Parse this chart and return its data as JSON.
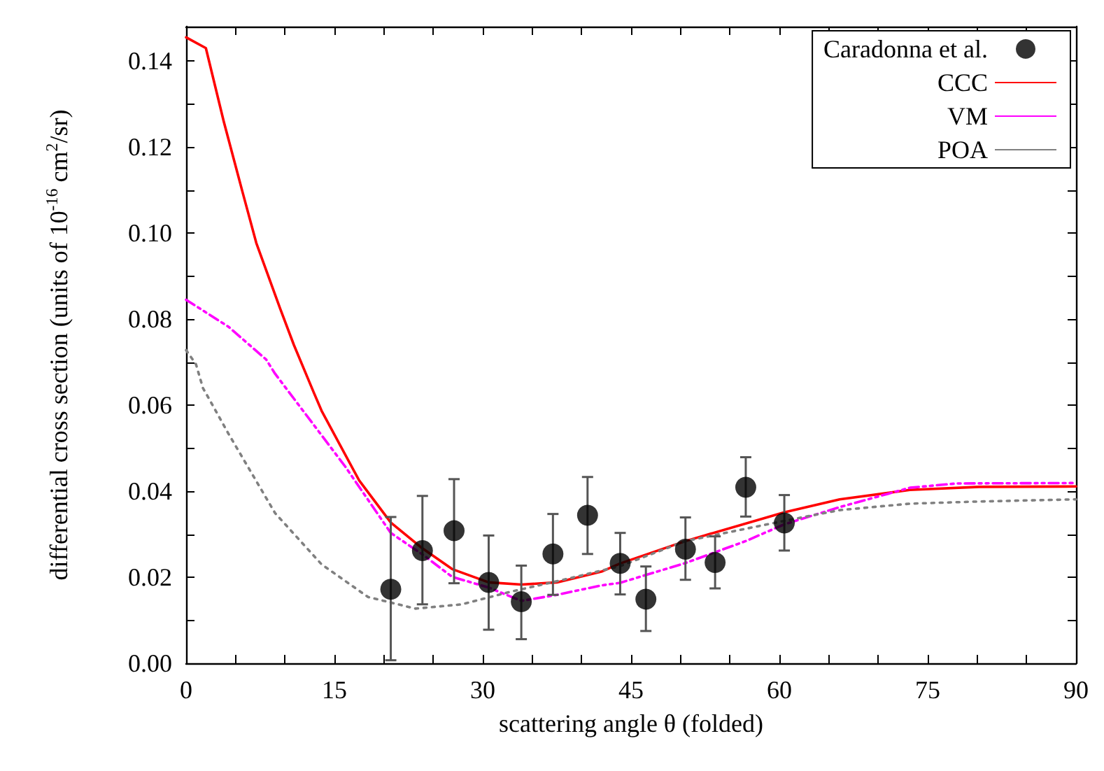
{
  "chart_data": {
    "type": "line",
    "xlabel": "scattering angle θ (folded)",
    "ylabel": "differential cross section (units of 10$^{-16}$ cm$^{2}$/sr)",
    "xlim": [
      0,
      90
    ],
    "xticks": [
      0,
      {
        "value": 5,
        "label": null
      },
      {
        "value": 10,
        "label": null
      },
      15,
      {
        "value": 20,
        "label": null
      },
      {
        "value": 25,
        "label": null
      },
      30,
      {
        "value": 35,
        "label": null
      },
      {
        "value": 40,
        "label": null
      },
      45,
      {
        "value": 50,
        "label": null
      },
      {
        "value": 55,
        "label": null
      },
      60,
      {
        "value": 65,
        "label": null
      },
      {
        "value": 70,
        "label": null
      },
      75,
      {
        "value": 80,
        "label": null
      },
      {
        "value": 85,
        "label": null
      },
      90
    ],
    "ylim": [
      0,
      0.148
    ],
    "yticks": [
      {
        "value": 0,
        "label": "0.00"
      },
      {
        "value": 0.01,
        "label": null
      },
      {
        "value": 0.02,
        "label": "0.02"
      },
      {
        "value": 0.03,
        "label": null
      },
      {
        "value": 0.04,
        "label": "0.04"
      },
      {
        "value": 0.05,
        "label": null
      },
      {
        "value": 0.06,
        "label": "0.06"
      },
      {
        "value": 0.07,
        "label": null
      },
      {
        "value": 0.08,
        "label": "0.08"
      },
      {
        "value": 0.09,
        "label": null
      },
      {
        "value": 0.1,
        "label": "0.10"
      },
      {
        "value": 0.11,
        "label": null
      },
      {
        "value": 0.12,
        "label": "0.12"
      },
      {
        "value": 0.13,
        "label": null
      },
      {
        "value": 0.14,
        "label": "0.14"
      }
    ],
    "grid": false,
    "legend": "top right",
    "series": [
      {
        "name": "Caradonna et al.",
        "type": "scatter",
        "color": "#000000",
        "marker": "circle",
        "x": [
          20.7,
          23.9,
          27.1,
          30.6,
          33.9,
          37.1,
          40.6,
          43.9,
          46.5,
          50.5,
          53.5,
          56.6,
          60.5
        ],
        "values": [
          0.0172,
          0.0262,
          0.0308,
          0.0188,
          0.0143,
          0.0254,
          0.0344,
          0.0232,
          0.0149,
          0.0265,
          0.0234,
          0.0409,
          0.0326
        ],
        "errors": [
          [
            0.0007,
            0.034
          ],
          [
            0.0137,
            0.0389
          ],
          [
            0.0186,
            0.0428
          ],
          [
            0.0078,
            0.0297
          ],
          [
            0.0056,
            0.0227
          ],
          [
            0.0159,
            0.0347
          ],
          [
            0.0254,
            0.0433
          ],
          [
            0.016,
            0.0303
          ],
          [
            0.0075,
            0.0225
          ],
          [
            0.0194,
            0.0339
          ],
          [
            0.0174,
            0.0295
          ],
          [
            0.0341,
            0.0479
          ],
          [
            0.0262,
            0.0391
          ]
        ]
      },
      {
        "name": "CCC",
        "color": "#ff0000",
        "marker": "none",
        "line_style": "solid",
        "x": [
          0,
          2,
          3.8,
          5.7,
          7.1,
          9.5,
          10.9,
          12.9,
          13.7,
          17.5,
          20.7,
          23.9,
          26.9,
          30.6,
          33.9,
          37.5,
          42,
          43.9,
          50.5,
          60.5,
          66.1,
          73.2,
          80.2,
          90
        ],
        "values": [
          0.1455,
          0.143,
          0.126,
          0.1096,
          0.0977,
          0.0825,
          0.074,
          0.063,
          0.0587,
          0.0425,
          0.0327,
          0.0267,
          0.0219,
          0.0188,
          0.0183,
          0.0188,
          0.0213,
          0.0232,
          0.0284,
          0.0351,
          0.0381,
          0.0403,
          0.041,
          0.0411
        ]
      },
      {
        "name": "VM",
        "color": "#ff00ff",
        "marker": "none",
        "line_style": "dashdot",
        "x": [
          0,
          4.3,
          8.1,
          9,
          16.1,
          20.7,
          23.9,
          26.9,
          30.6,
          33.9,
          37.5,
          42,
          43.9,
          50.5,
          56.6,
          60.5,
          66.1,
          73.2,
          77.9,
          90
        ],
        "values": [
          0.0845,
          0.0782,
          0.0706,
          0.0673,
          0.0457,
          0.0303,
          0.0253,
          0.0201,
          0.0176,
          0.0145,
          0.0159,
          0.0181,
          0.0187,
          0.0233,
          0.0284,
          0.0323,
          0.0363,
          0.0408,
          0.0418,
          0.0419
        ]
      },
      {
        "name": "POA",
        "color": "#808080",
        "marker": "none",
        "line_style": "dotted",
        "x": [
          0,
          1,
          1.7,
          4.3,
          9,
          13.7,
          18.4,
          23.2,
          27.9,
          32.6,
          38.7,
          43.9,
          50.5,
          60.5,
          66.1,
          73.2,
          80.2,
          90
        ],
        "values": [
          0.0728,
          0.0695,
          0.064,
          0.0533,
          0.0349,
          0.023,
          0.0154,
          0.0127,
          0.0137,
          0.0165,
          0.0197,
          0.0226,
          0.0284,
          0.0331,
          0.0356,
          0.0371,
          0.0376,
          0.0381
        ]
      }
    ]
  }
}
